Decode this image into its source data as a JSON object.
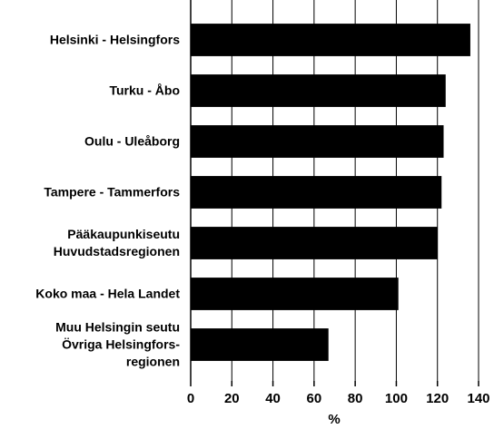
{
  "chart_data": {
    "type": "bar",
    "orientation": "horizontal",
    "categories": [
      "Helsinki - Helsingfors",
      "Turku - Åbo",
      "Oulu - Uleåborg",
      "Tampere - Tammerfors",
      "Pääkaupunkiseutu\nHuvudstadsregionen",
      "Koko maa - Hela Landet",
      "Muu Helsingin seutu\nÖvriga Helsingfors-\nregionen"
    ],
    "values": [
      136,
      124,
      123,
      122,
      120,
      101,
      67
    ],
    "color": "#000000",
    "x_label": "%",
    "xlim": [
      0,
      140
    ],
    "xticks": [
      0,
      20,
      40,
      60,
      80,
      100,
      120,
      140
    ],
    "grid": true
  }
}
